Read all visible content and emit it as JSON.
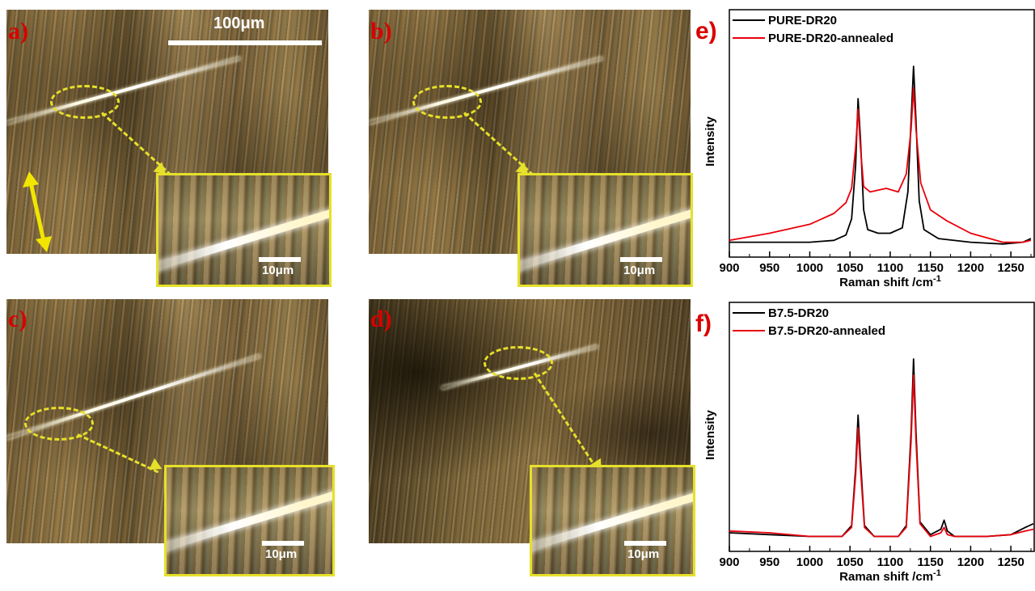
{
  "panels": {
    "a": {
      "label": "a)",
      "main_scale": "100μm",
      "inset_scale": "10μm"
    },
    "b": {
      "label": "b)",
      "inset_scale": "10μm"
    },
    "c": {
      "label": "c)",
      "inset_scale": "10μm"
    },
    "d": {
      "label": "d)",
      "inset_scale": "10μm"
    }
  },
  "colors": {
    "panel_label": "#d90000",
    "annotation": "#e6e02a",
    "series_black": "#000000",
    "series_red": "#e8000b"
  },
  "chart_data": [
    {
      "panel_label": "e)",
      "type": "line",
      "xlabel": "Raman shift /cm",
      "xlabel_sup": "-1",
      "ylabel": "Intensity",
      "xlim": [
        900,
        1280
      ],
      "xticks": [
        900,
        950,
        1000,
        1050,
        1100,
        1150,
        1200,
        1250
      ],
      "legend_position": "top-left",
      "series": [
        {
          "name": "PURE-DR20",
          "color": "#000000",
          "points": [
            [
              900,
              0.02
            ],
            [
              950,
              0.02
            ],
            [
              1000,
              0.02
            ],
            [
              1030,
              0.03
            ],
            [
              1045,
              0.06
            ],
            [
              1052,
              0.15
            ],
            [
              1057,
              0.45
            ],
            [
              1060,
              0.82
            ],
            [
              1063,
              0.6
            ],
            [
              1067,
              0.2
            ],
            [
              1072,
              0.09
            ],
            [
              1085,
              0.07
            ],
            [
              1100,
              0.07
            ],
            [
              1115,
              0.1
            ],
            [
              1122,
              0.3
            ],
            [
              1126,
              0.7
            ],
            [
              1129,
              1.0
            ],
            [
              1132,
              0.7
            ],
            [
              1136,
              0.25
            ],
            [
              1142,
              0.09
            ],
            [
              1160,
              0.04
            ],
            [
              1200,
              0.02
            ],
            [
              1240,
              0.01
            ],
            [
              1265,
              0.02
            ],
            [
              1275,
              0.04
            ]
          ]
        },
        {
          "name": "PURE-DR20-annealed",
          "color": "#e8000b",
          "points": [
            [
              900,
              0.03
            ],
            [
              950,
              0.07
            ],
            [
              1000,
              0.12
            ],
            [
              1030,
              0.18
            ],
            [
              1045,
              0.24
            ],
            [
              1052,
              0.32
            ],
            [
              1057,
              0.55
            ],
            [
              1060,
              0.76
            ],
            [
              1063,
              0.55
            ],
            [
              1067,
              0.33
            ],
            [
              1075,
              0.3
            ],
            [
              1095,
              0.32
            ],
            [
              1110,
              0.3
            ],
            [
              1120,
              0.4
            ],
            [
              1126,
              0.65
            ],
            [
              1129,
              0.88
            ],
            [
              1132,
              0.65
            ],
            [
              1138,
              0.35
            ],
            [
              1150,
              0.2
            ],
            [
              1170,
              0.14
            ],
            [
              1200,
              0.07
            ],
            [
              1240,
              0.02
            ],
            [
              1265,
              0.02
            ],
            [
              1275,
              0.03
            ]
          ]
        }
      ]
    },
    {
      "panel_label": "f)",
      "type": "line",
      "xlabel": "Raman shift /cm",
      "xlabel_sup": "-1",
      "ylabel": "Intensity",
      "xlim": [
        900,
        1280
      ],
      "xticks": [
        900,
        950,
        1000,
        1050,
        1100,
        1150,
        1200,
        1250
      ],
      "legend_position": "top-left",
      "series": [
        {
          "name": "B7.5-DR20",
          "color": "#000000",
          "points": [
            [
              900,
              0.04
            ],
            [
              950,
              0.03
            ],
            [
              1000,
              0.02
            ],
            [
              1040,
              0.02
            ],
            [
              1052,
              0.08
            ],
            [
              1057,
              0.4
            ],
            [
              1060,
              0.69
            ],
            [
              1063,
              0.45
            ],
            [
              1068,
              0.08
            ],
            [
              1080,
              0.02
            ],
            [
              1110,
              0.02
            ],
            [
              1120,
              0.08
            ],
            [
              1126,
              0.6
            ],
            [
              1129,
              1.0
            ],
            [
              1132,
              0.6
            ],
            [
              1137,
              0.1
            ],
            [
              1150,
              0.03
            ],
            [
              1163,
              0.06
            ],
            [
              1167,
              0.11
            ],
            [
              1171,
              0.05
            ],
            [
              1180,
              0.02
            ],
            [
              1220,
              0.02
            ],
            [
              1250,
              0.03
            ],
            [
              1268,
              0.07
            ],
            [
              1278,
              0.09
            ]
          ]
        },
        {
          "name": "B7.5-DR20-annealed",
          "color": "#e8000b",
          "points": [
            [
              900,
              0.05
            ],
            [
              950,
              0.04
            ],
            [
              1000,
              0.02
            ],
            [
              1040,
              0.02
            ],
            [
              1052,
              0.07
            ],
            [
              1057,
              0.36
            ],
            [
              1060,
              0.62
            ],
            [
              1063,
              0.4
            ],
            [
              1068,
              0.07
            ],
            [
              1080,
              0.02
            ],
            [
              1110,
              0.02
            ],
            [
              1120,
              0.07
            ],
            [
              1126,
              0.55
            ],
            [
              1129,
              0.91
            ],
            [
              1132,
              0.55
            ],
            [
              1137,
              0.09
            ],
            [
              1150,
              0.02
            ],
            [
              1163,
              0.04
            ],
            [
              1167,
              0.07
            ],
            [
              1171,
              0.03
            ],
            [
              1180,
              0.02
            ],
            [
              1220,
              0.02
            ],
            [
              1250,
              0.03
            ],
            [
              1268,
              0.05
            ],
            [
              1278,
              0.06
            ]
          ]
        }
      ]
    }
  ]
}
